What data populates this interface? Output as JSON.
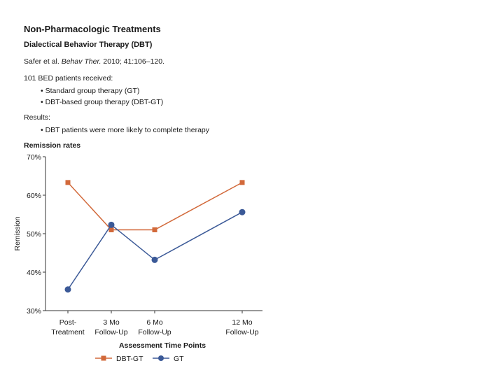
{
  "slide": {
    "title": "Non-Pharmacologic Treatments",
    "subtitle": "Dialectical Behavior Therapy (DBT)",
    "citation": {
      "authors": "Safer et al. ",
      "journal": "Behav Ther.",
      "details": " 2010; 41:106–120."
    },
    "intro": "101 BED patients received:",
    "groups": [
      "Standard group therapy (GT)",
      "DBT-based group therapy (DBT-GT)"
    ],
    "results_label": "Results:",
    "results": [
      "DBT patients were more likely to complete therapy"
    ],
    "chart_heading": "Remission rates"
  },
  "colors": {
    "dbt_gt": "#d2693a",
    "gt": "#3b5997",
    "axis": "#333333",
    "text": "#1a1a1a"
  },
  "chart_data": {
    "type": "line",
    "title": "Remission rates",
    "xlabel": "Assessment Time Points",
    "ylabel": "Remission",
    "categories": [
      [
        "Post-",
        "Treatment"
      ],
      [
        "3 Mo",
        "Follow-Up"
      ],
      [
        "6 Mo",
        "Follow-Up"
      ],
      [
        "12 Mo",
        "Follow-Up"
      ]
    ],
    "x": [
      0,
      3,
      6,
      12
    ],
    "ylim": [
      30,
      70
    ],
    "yticks": [
      "30%",
      "40%",
      "50%",
      "60%",
      "70%"
    ],
    "ytick_values": [
      30,
      40,
      50,
      60,
      70
    ],
    "grid": false,
    "legend_position": "bottom-center",
    "series": [
      {
        "name": "DBT-GT",
        "marker": "square",
        "color": "#d2693a",
        "values": [
          63.3,
          51,
          51,
          63.3
        ]
      },
      {
        "name": "GT",
        "marker": "circle",
        "color": "#3b5997",
        "values": [
          35.5,
          52.3,
          43.2,
          55.6
        ]
      }
    ]
  }
}
